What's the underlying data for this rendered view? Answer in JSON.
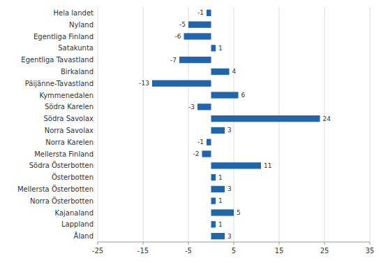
{
  "chart_data": {
    "type": "bar",
    "orientation": "horizontal",
    "categories": [
      "Åland",
      "Lappland",
      "Kajanaland",
      "Norra Österbotten",
      "Mellersta Österbotten",
      "Österbotten",
      "Södra Österbotten",
      "Mellersta Finland",
      "Norra Karelen",
      "Norra Savolax",
      "Södra Savolax",
      "Södra Karelen",
      "Kymmenedalen",
      "Päijänne-Tavastland",
      "Birkaland",
      "Egentliga Tavastland",
      "Satakunta",
      "Egentliga Finland",
      "Nyland",
      "Hela landet"
    ],
    "values": [
      3,
      1,
      5,
      1,
      3,
      1,
      11,
      -2,
      -1,
      3,
      24,
      -3,
      6,
      -13,
      4,
      -7,
      1,
      -6,
      -5,
      -1
    ],
    "color": "#2166AC",
    "xlim": [
      -25,
      35
    ],
    "xticks": [
      -25,
      -15,
      -5,
      5,
      15,
      25,
      35
    ],
    "grid": true,
    "data_labels": true
  }
}
